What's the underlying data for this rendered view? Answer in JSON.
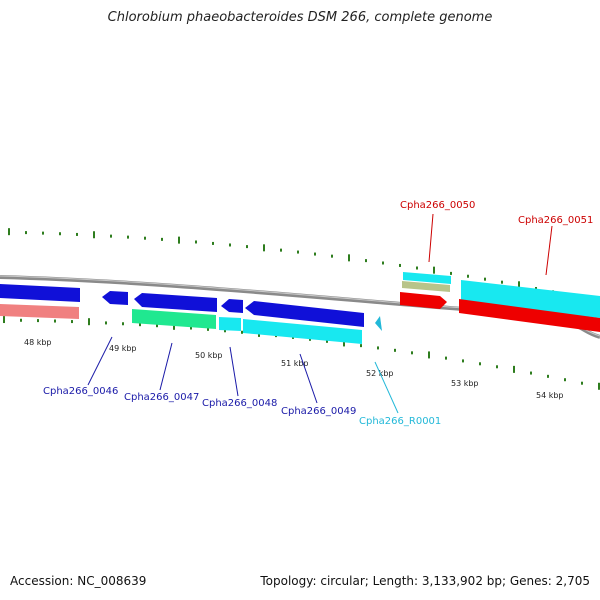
{
  "title": "Chlorobium phaeobacteroides DSM 266, complete genome",
  "footer": {
    "accession": "Accession: NC_008639",
    "summary": "Topology: circular; Length: 3,133,902 bp; Genes: 2,705"
  },
  "colors": {
    "backbone": "#8a8a8a",
    "tick": "#2e7d1e",
    "label_blue": "#1a1aa8",
    "label_red": "#cc0000",
    "label_cyan": "#22b8d8",
    "feature_blue": "#1010d8",
    "feature_cyan": "#18e8f0",
    "feature_red": "#ee0000",
    "feature_pink": "#f08080",
    "feature_green": "#20e890",
    "feature_olive": "#b8c48a"
  },
  "axis": {
    "unit": "kbp",
    "labels": [
      "48 kbp",
      "49 kbp",
      "50 kbp",
      "51 kbp",
      "52 kbp",
      "53 kbp",
      "54 kbp"
    ]
  },
  "genes": [
    {
      "name": "Cpha266_0046",
      "color": "label_blue"
    },
    {
      "name": "Cpha266_0047",
      "color": "label_blue"
    },
    {
      "name": "Cpha266_0048",
      "color": "label_blue"
    },
    {
      "name": "Cpha266_0049",
      "color": "label_blue"
    },
    {
      "name": "Cpha266_R0001",
      "color": "label_cyan"
    },
    {
      "name": "Cpha266_0050",
      "color": "label_red"
    },
    {
      "name": "Cpha266_0051",
      "color": "label_red"
    }
  ]
}
